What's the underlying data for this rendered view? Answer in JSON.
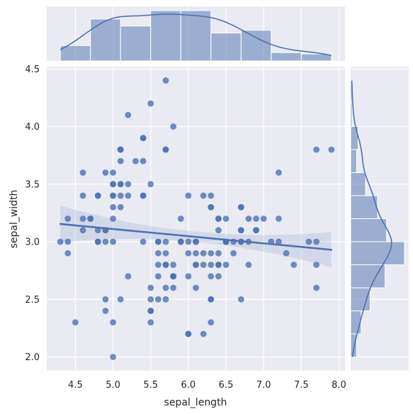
{
  "chart_data": {
    "type": "scatter",
    "title": "",
    "xlabel": "sepal_length",
    "ylabel": "sepal_width",
    "xlim": [
      4.12,
      8.08
    ],
    "ylim": [
      1.88,
      4.52
    ],
    "xticks": [
      "4.5",
      "5.0",
      "5.5",
      "6.0",
      "6.5",
      "7.0",
      "7.5",
      "8.0"
    ],
    "yticks": [
      "2.0",
      "2.5",
      "3.0",
      "3.5",
      "4.0",
      "4.5"
    ],
    "xtick_values": [
      4.5,
      5.0,
      5.5,
      6.0,
      6.5,
      7.0,
      7.5,
      8.0
    ],
    "ytick_values": [
      2.0,
      2.5,
      3.0,
      3.5,
      4.0,
      4.5
    ],
    "grid": true,
    "colors": {
      "background": "#eaeaf2",
      "grid": "#ffffff",
      "series": "#4c72b0"
    },
    "points": [
      [
        4.3,
        3.0
      ],
      [
        4.4,
        3.0
      ],
      [
        4.4,
        2.9
      ],
      [
        4.4,
        3.2
      ],
      [
        4.5,
        2.3
      ],
      [
        4.6,
        3.1
      ],
      [
        4.6,
        3.2
      ],
      [
        4.6,
        3.4
      ],
      [
        4.6,
        3.6
      ],
      [
        4.7,
        3.2
      ],
      [
        4.7,
        3.2
      ],
      [
        4.8,
        3.0
      ],
      [
        4.8,
        3.0
      ],
      [
        4.8,
        3.1
      ],
      [
        4.8,
        3.4
      ],
      [
        4.8,
        3.4
      ],
      [
        4.9,
        2.4
      ],
      [
        4.9,
        2.5
      ],
      [
        4.9,
        3.0
      ],
      [
        4.9,
        3.1
      ],
      [
        4.9,
        3.1
      ],
      [
        4.9,
        3.6
      ],
      [
        5.0,
        2.0
      ],
      [
        5.0,
        2.3
      ],
      [
        5.0,
        3.0
      ],
      [
        5.0,
        3.2
      ],
      [
        5.0,
        3.3
      ],
      [
        5.0,
        3.4
      ],
      [
        5.0,
        3.4
      ],
      [
        5.0,
        3.5
      ],
      [
        5.0,
        3.5
      ],
      [
        5.0,
        3.6
      ],
      [
        5.1,
        2.5
      ],
      [
        5.1,
        3.3
      ],
      [
        5.1,
        3.4
      ],
      [
        5.1,
        3.5
      ],
      [
        5.1,
        3.5
      ],
      [
        5.1,
        3.7
      ],
      [
        5.1,
        3.8
      ],
      [
        5.1,
        3.8
      ],
      [
        5.1,
        3.8
      ],
      [
        5.2,
        2.7
      ],
      [
        5.2,
        3.4
      ],
      [
        5.2,
        3.5
      ],
      [
        5.2,
        4.1
      ],
      [
        5.3,
        3.7
      ],
      [
        5.4,
        3.0
      ],
      [
        5.4,
        3.4
      ],
      [
        5.4,
        3.4
      ],
      [
        5.4,
        3.7
      ],
      [
        5.4,
        3.9
      ],
      [
        5.4,
        3.9
      ],
      [
        5.5,
        2.3
      ],
      [
        5.5,
        2.4
      ],
      [
        5.5,
        2.4
      ],
      [
        5.5,
        2.5
      ],
      [
        5.5,
        2.6
      ],
      [
        5.5,
        3.5
      ],
      [
        5.5,
        4.2
      ],
      [
        5.6,
        2.5
      ],
      [
        5.6,
        2.7
      ],
      [
        5.6,
        2.8
      ],
      [
        5.6,
        2.9
      ],
      [
        5.6,
        3.0
      ],
      [
        5.6,
        3.0
      ],
      [
        5.7,
        2.5
      ],
      [
        5.7,
        2.6
      ],
      [
        5.7,
        2.8
      ],
      [
        5.7,
        2.8
      ],
      [
        5.7,
        2.9
      ],
      [
        5.7,
        3.0
      ],
      [
        5.7,
        3.8
      ],
      [
        5.7,
        3.8
      ],
      [
        5.7,
        4.4
      ],
      [
        5.8,
        2.6
      ],
      [
        5.8,
        2.7
      ],
      [
        5.8,
        2.7
      ],
      [
        5.8,
        2.7
      ],
      [
        5.8,
        2.7
      ],
      [
        5.8,
        2.8
      ],
      [
        5.8,
        4.0
      ],
      [
        5.9,
        3.0
      ],
      [
        5.9,
        3.0
      ],
      [
        5.9,
        3.2
      ],
      [
        6.0,
        2.2
      ],
      [
        6.0,
        2.2
      ],
      [
        6.0,
        2.7
      ],
      [
        6.0,
        2.9
      ],
      [
        6.0,
        3.0
      ],
      [
        6.0,
        3.4
      ],
      [
        6.1,
        2.6
      ],
      [
        6.1,
        2.8
      ],
      [
        6.1,
        2.8
      ],
      [
        6.1,
        2.9
      ],
      [
        6.1,
        3.0
      ],
      [
        6.1,
        3.0
      ],
      [
        6.2,
        2.2
      ],
      [
        6.2,
        2.8
      ],
      [
        6.2,
        2.9
      ],
      [
        6.2,
        3.4
      ],
      [
        6.3,
        2.3
      ],
      [
        6.3,
        2.5
      ],
      [
        6.3,
        2.5
      ],
      [
        6.3,
        2.7
      ],
      [
        6.3,
        2.8
      ],
      [
        6.3,
        2.9
      ],
      [
        6.3,
        3.3
      ],
      [
        6.3,
        3.3
      ],
      [
        6.3,
        3.4
      ],
      [
        6.4,
        2.7
      ],
      [
        6.4,
        2.8
      ],
      [
        6.4,
        2.8
      ],
      [
        6.4,
        2.9
      ],
      [
        6.4,
        3.1
      ],
      [
        6.4,
        3.2
      ],
      [
        6.4,
        3.2
      ],
      [
        6.5,
        2.8
      ],
      [
        6.5,
        3.0
      ],
      [
        6.5,
        3.0
      ],
      [
        6.5,
        3.0
      ],
      [
        6.5,
        3.2
      ],
      [
        6.6,
        2.9
      ],
      [
        6.6,
        3.0
      ],
      [
        6.7,
        2.5
      ],
      [
        6.7,
        3.0
      ],
      [
        6.7,
        3.0
      ],
      [
        6.7,
        3.1
      ],
      [
        6.7,
        3.1
      ],
      [
        6.7,
        3.3
      ],
      [
        6.7,
        3.3
      ],
      [
        6.8,
        2.8
      ],
      [
        6.8,
        3.0
      ],
      [
        6.8,
        3.2
      ],
      [
        6.9,
        3.1
      ],
      [
        6.9,
        3.1
      ],
      [
        6.9,
        3.2
      ],
      [
        7.0,
        3.2
      ],
      [
        7.1,
        3.0
      ],
      [
        7.2,
        3.0
      ],
      [
        7.2,
        3.2
      ],
      [
        7.2,
        3.6
      ],
      [
        7.3,
        2.9
      ],
      [
        7.4,
        2.8
      ],
      [
        7.6,
        3.0
      ],
      [
        7.7,
        2.6
      ],
      [
        7.7,
        2.8
      ],
      [
        7.7,
        3.0
      ],
      [
        7.7,
        3.8
      ],
      [
        7.9,
        3.8
      ]
    ],
    "regression": {
      "x": [
        4.3,
        7.9
      ],
      "y": [
        3.154,
        2.93
      ],
      "ci_lower": [
        2.996,
        2.776
      ],
      "ci_upper": [
        3.316,
        3.084
      ],
      "ci_min": 0.045,
      "ci_x0": 6.1
    },
    "marginal_x": {
      "bins": [
        4.3,
        4.7,
        5.1,
        5.5,
        5.9,
        6.3,
        6.7,
        7.1,
        7.5,
        7.9
      ],
      "counts": [
        11,
        30,
        25,
        36,
        36,
        20,
        22,
        6,
        5
      ]
    },
    "marginal_y": {
      "bins": [
        2.0,
        2.2,
        2.4,
        2.6,
        2.8,
        3.0,
        3.2,
        3.4,
        3.6,
        3.8,
        4.0,
        4.2,
        4.4
      ],
      "counts": [
        4,
        7,
        13,
        23,
        36,
        24,
        18,
        10,
        4,
        5,
        1,
        1
      ]
    }
  }
}
